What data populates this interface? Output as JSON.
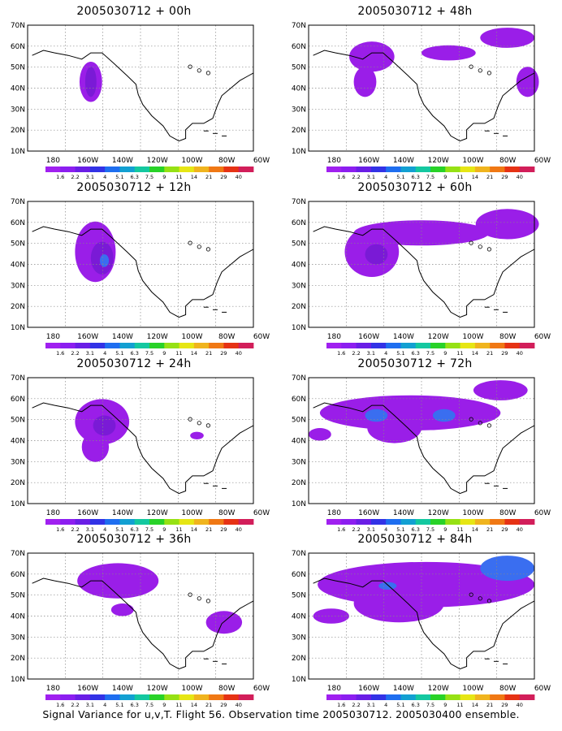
{
  "colors": {
    "palette": [
      "#a020f0",
      "#8c1ef0",
      "#6a1ee6",
      "#3232e6",
      "#1e6ef0",
      "#12a0d2",
      "#14c8a0",
      "#28d228",
      "#96e114",
      "#e6e614",
      "#f0b41e",
      "#f07814",
      "#e63214",
      "#d21e5a"
    ],
    "signal_fill": "#9a1ee8",
    "signal_core": "#7a1ad6",
    "signal_peak": "#3a6ef0",
    "coast": "#000000",
    "grid": "#888888"
  },
  "map": {
    "lat_labels": [
      "70N",
      "60N",
      "50N",
      "40N",
      "30N",
      "20N",
      "10N"
    ],
    "lon_labels": [
      "180",
      "160W",
      "140W",
      "120W",
      "100W",
      "80W",
      "60W"
    ],
    "colorbar_labels": [
      "1.6",
      "2.2",
      "3.1",
      "4",
      "5.1",
      "6.3",
      "7.5",
      "9",
      "11",
      "14",
      "21",
      "29",
      "40"
    ]
  },
  "panels": [
    {
      "title": "2005030712  + 00h",
      "lead": "00h"
    },
    {
      "title": "2005030712  + 48h",
      "lead": "48h"
    },
    {
      "title": "2005030712  + 12h",
      "lead": "12h"
    },
    {
      "title": "2005030712  + 60h",
      "lead": "60h"
    },
    {
      "title": "2005030712  + 24h",
      "lead": "24h"
    },
    {
      "title": "2005030712  + 72h",
      "lead": "72h"
    },
    {
      "title": "2005030712  + 36h",
      "lead": "36h"
    },
    {
      "title": "2005030712  + 84h",
      "lead": "84h"
    }
  ],
  "footer": "Signal Variance for u,v,T. Flight 56. Observation time 2005030712. 2005030400 ensemble."
}
